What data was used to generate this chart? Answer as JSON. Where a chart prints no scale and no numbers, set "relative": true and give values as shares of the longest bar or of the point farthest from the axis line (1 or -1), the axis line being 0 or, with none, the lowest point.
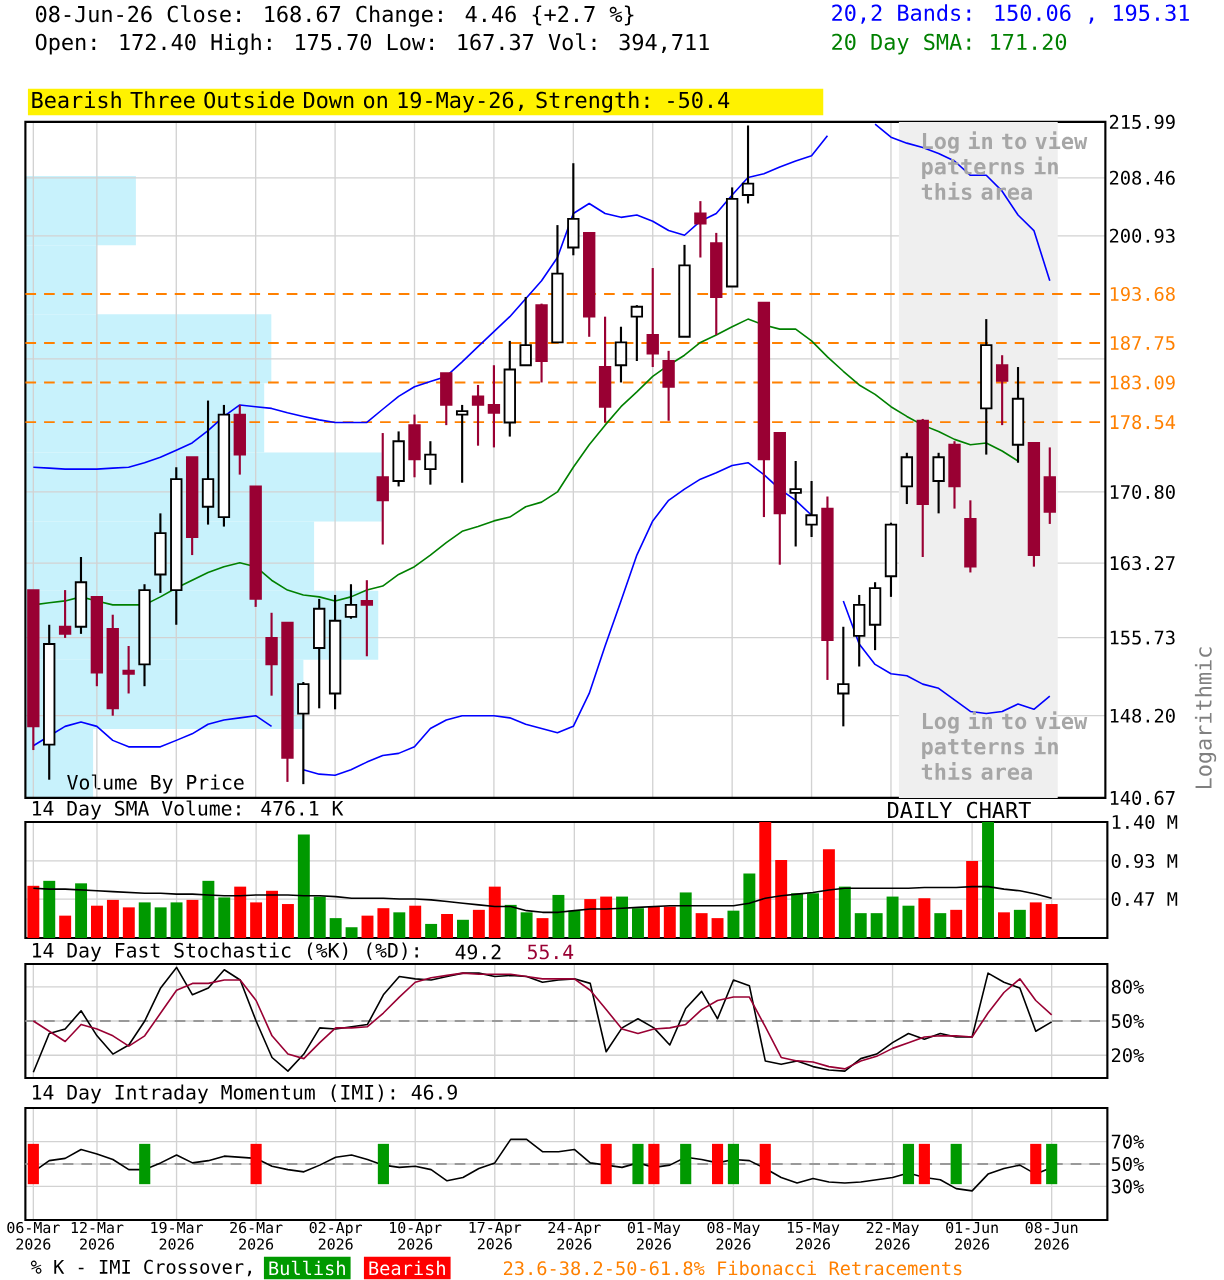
{
  "chart_data": [
    {
      "type": "candlestick",
      "title": "08-Jun-26 Close: 168.67 Change: 4.46 {+2.7 %}",
      "subtitle": "Open: 172.40 High: 175.70 Low: 167.37 Vol: 394,711",
      "ylabel": "Logarithmic",
      "annotations": [
        "Bearish Three Outside Down on 19-May-26, Strength: -50.4",
        "Log in to view patterns in this area",
        "Log in to view patterns in this area",
        "23.6-38.2-50-61.8% Fibonacci Retracements"
      ],
      "categories": [
        "06-Mar 2026",
        null,
        null,
        null,
        "12-Mar 2026",
        null,
        null,
        null,
        null,
        "19-Mar 2026",
        null,
        null,
        null,
        null,
        "26-Mar 2026",
        null,
        null,
        null,
        null,
        "02-Apr 2026",
        null,
        null,
        null,
        null,
        "10-Apr 2026",
        null,
        null,
        null,
        null,
        "17-Apr 2026",
        null,
        null,
        null,
        null,
        "24-Apr 2026",
        null,
        null,
        null,
        null,
        "01-May 2026",
        null,
        null,
        null,
        null,
        "08-May 2026",
        null,
        null,
        null,
        null,
        "15-May 2026",
        null,
        null,
        null,
        null,
        "22-May 2026",
        null,
        null,
        null,
        null,
        "01-Jun 2026",
        null,
        null,
        null,
        null,
        "08-Jun 2026",
        null,
        null,
        null
      ],
      "ohlc": [
        [
          160.5,
          160.5,
          145.0,
          147.2
        ],
        [
          145.5,
          157.0,
          142.3,
          155.1
        ],
        [
          156.8,
          160.5,
          155.7,
          156.1
        ],
        [
          156.8,
          163.9,
          156.1,
          161.3
        ],
        [
          159.8,
          159.8,
          151.0,
          152.3
        ],
        [
          156.6,
          158.0,
          148.2,
          148.9
        ],
        [
          152.5,
          154.9,
          150.3,
          152.2
        ],
        [
          153.1,
          161.1,
          151.0,
          160.5
        ],
        [
          162.1,
          168.5,
          160.2,
          166.4
        ],
        [
          160.5,
          173.5,
          157.0,
          172.2
        ],
        [
          174.6,
          174.6,
          164.1,
          166.0
        ],
        [
          169.2,
          181.0,
          167.3,
          172.2
        ],
        [
          168.1,
          180.5,
          167.1,
          179.4
        ],
        [
          179.4,
          180.5,
          172.7,
          174.9
        ],
        [
          171.4,
          171.4,
          158.8,
          159.6
        ],
        [
          155.7,
          158.2,
          150.1,
          153.1
        ],
        [
          157.2,
          157.2,
          142.1,
          144.3
        ],
        [
          148.4,
          151.4,
          141.9,
          151.2
        ],
        [
          154.7,
          159.6,
          148.9,
          158.6
        ],
        [
          150.3,
          160.0,
          148.8,
          157.4
        ],
        [
          157.8,
          161.1,
          157.6,
          159.0
        ],
        [
          159.4,
          161.5,
          153.9,
          159.0
        ],
        [
          172.4,
          177.3,
          165.2,
          169.9
        ],
        [
          172.0,
          177.5,
          171.4,
          176.4
        ],
        [
          178.2,
          179.4,
          172.4,
          174.4
        ],
        [
          173.3,
          176.4,
          171.6,
          174.9
        ],
        [
          184.2,
          184.2,
          178.2,
          180.5
        ],
        [
          179.4,
          180.5,
          171.8,
          179.8
        ],
        [
          181.5,
          182.8,
          175.9,
          180.5
        ],
        [
          180.5,
          185.1,
          175.7,
          179.6
        ],
        [
          178.5,
          188.0,
          176.9,
          184.6
        ],
        [
          185.1,
          193.3,
          185.1,
          187.5
        ],
        [
          192.3,
          192.5,
          183.1,
          185.6
        ],
        [
          187.8,
          202.3,
          187.8,
          196.2
        ],
        [
          199.5,
          210.4,
          198.5,
          203.1
        ],
        [
          201.3,
          201.3,
          188.5,
          190.9
        ],
        [
          184.9,
          190.9,
          178.5,
          180.3
        ],
        [
          185.1,
          189.7,
          183.1,
          187.8
        ],
        [
          190.9,
          192.3,
          185.6,
          192.1
        ],
        [
          188.7,
          196.9,
          184.9,
          186.5
        ],
        [
          185.6,
          186.8,
          178.7,
          182.6
        ],
        [
          188.5,
          199.8,
          188.5,
          197.2
        ],
        [
          203.8,
          205.4,
          198.2,
          202.5
        ],
        [
          200.0,
          201.3,
          188.7,
          193.3
        ],
        [
          194.6,
          207.2,
          194.6,
          205.7
        ],
        [
          206.2,
          215.5,
          205.1,
          207.7
        ],
        [
          192.6,
          192.6,
          168.1,
          174.4
        ],
        [
          177.3,
          177.3,
          163.1,
          168.5
        ],
        [
          170.7,
          174.2,
          165.0,
          171.1
        ],
        [
          167.3,
          172.0,
          166.0,
          168.3
        ],
        [
          169.0,
          170.3,
          151.6,
          155.5
        ],
        [
          150.3,
          156.8,
          147.2,
          151.2
        ],
        [
          155.9,
          160.0,
          152.9,
          159.0
        ],
        [
          157.0,
          161.3,
          154.5,
          160.7
        ],
        [
          161.9,
          167.5,
          159.8,
          167.3
        ],
        [
          171.4,
          175.1,
          169.5,
          174.6
        ],
        [
          178.7,
          178.9,
          163.9,
          169.5
        ],
        [
          172.0,
          175.1,
          168.5,
          174.6
        ],
        [
          176.0,
          176.4,
          169.0,
          171.4
        ],
        [
          167.9,
          169.9,
          162.3,
          162.9
        ],
        [
          180.1,
          190.6,
          174.9,
          187.5
        ],
        [
          185.1,
          186.3,
          178.2,
          183.3
        ],
        [
          176.0,
          184.9,
          174.0,
          181.2
        ],
        [
          176.2,
          176.2,
          162.9,
          164.1
        ],
        [
          172.4,
          175.7,
          167.37,
          168.67
        ],
        null,
        null,
        null
      ],
      "colors": [
        "#990033",
        "#ffffff",
        "#990033",
        "#ffffff",
        "#990033",
        "#990033",
        "#990033",
        "#ffffff",
        "#ffffff",
        "#ffffff",
        "#990033",
        "#ffffff",
        "#ffffff",
        "#990033",
        "#990033",
        "#990033",
        "#990033",
        "#ffffff",
        "#ffffff",
        "#ffffff",
        "#ffffff",
        "#990033",
        "#990033",
        "#ffffff",
        "#990033",
        "#ffffff",
        "#990033",
        "#ffffff",
        "#990033",
        "#990033",
        "#ffffff",
        "#ffffff",
        "#990033",
        "#ffffff",
        "#ffffff",
        "#990033",
        "#990033",
        "#ffffff",
        "#ffffff",
        "#990033",
        "#990033",
        "#ffffff",
        "#990033",
        "#990033",
        "#ffffff",
        "#ffffff",
        "#990033",
        "#990033",
        "#ffffff",
        "#ffffff",
        "#990033",
        "#ffffff",
        "#ffffff",
        "#ffffff",
        "#ffffff",
        "#ffffff",
        "#990033",
        "#ffffff",
        "#990033",
        "#990033",
        "#ffffff",
        "#990033",
        "#ffffff",
        "#990033",
        "#990033",
        null,
        null,
        null
      ],
      "series": [
        {
          "type": "line",
          "name": "20,2 Bands: 150.06 , 195.31",
          "color": "#0000ff",
          "values": [
            173.5,
            173.4,
            173.3,
            173.3,
            173.3,
            173.4,
            173.5,
            174.0,
            174.6,
            175.4,
            176.2,
            177.6,
            179.2,
            180.5,
            180.3,
            180.1,
            179.6,
            179.2,
            178.8,
            178.5,
            178.5,
            178.5,
            180.0,
            181.5,
            182.6,
            183.2,
            183.8,
            185.5,
            187.3,
            189.1,
            190.9,
            193.1,
            195.3,
            198.2,
            203.8,
            205.1,
            203.8,
            203.3,
            203.6,
            202.8,
            201.6,
            201.0,
            202.8,
            203.8,
            206.2,
            208.5,
            209.0,
            209.9,
            210.7,
            211.4,
            214.1,
            null,
            null,
            215.7,
            213.9,
            213.1,
            212.5,
            211.7,
            210.7,
            208.8,
            208.8,
            206.7,
            203.6,
            201.6,
            195.31,
            null,
            null,
            null
          ]
        },
        {
          "type": "line",
          "color": "#0000ff",
          "values": [
            145.4,
            146.3,
            147.2,
            147.6,
            147.2,
            145.9,
            145.3,
            145.3,
            145.3,
            145.9,
            146.5,
            147.4,
            147.8,
            148.0,
            148.2,
            147.2,
            null,
            143.2,
            142.8,
            142.7,
            143.2,
            143.9,
            144.5,
            144.7,
            145.3,
            147.0,
            147.8,
            148.2,
            148.2,
            148.2,
            148.0,
            147.4,
            147.0,
            146.6,
            147.2,
            150.3,
            154.9,
            159.4,
            164.1,
            167.7,
            169.9,
            171.1,
            172.2,
            172.9,
            173.7,
            174.0,
            172.7,
            171.1,
            169.9,
            168.3,
            null,
            159.4,
            155.1,
            153.1,
            152.2,
            152.0,
            151.2,
            150.8,
            149.7,
            148.6,
            148.4,
            148.6,
            149.3,
            148.8,
            150.06,
            null,
            null,
            null
          ]
        },
        {
          "type": "line",
          "name": "20 Day SMA: 171.20",
          "color": "#008000",
          "values": [
            159.0,
            159.2,
            159.4,
            159.8,
            159.4,
            159.0,
            159.0,
            159.0,
            159.8,
            160.7,
            161.5,
            162.3,
            162.9,
            163.3,
            162.9,
            161.5,
            160.5,
            160.0,
            159.8,
            159.4,
            159.8,
            160.5,
            160.9,
            162.1,
            162.9,
            164.1,
            165.4,
            166.6,
            167.1,
            167.7,
            168.1,
            169.2,
            169.7,
            170.8,
            173.5,
            176.0,
            178.2,
            180.3,
            182.0,
            183.8,
            185.1,
            186.3,
            187.8,
            188.7,
            189.7,
            190.6,
            189.9,
            189.4,
            189.4,
            188.0,
            186.1,
            184.4,
            182.8,
            181.7,
            180.3,
            179.2,
            178.2,
            177.5,
            176.6,
            176.0,
            176.2,
            175.3,
            174.2,
            null,
            null,
            null,
            null,
            null
          ]
        }
      ],
      "ylim": [
        140.67,
        215.99
      ],
      "log": true,
      "yticks": [
        215.99,
        208.46,
        200.93,
        {
          "value": 185.87,
          "label": null
        },
        {
          "value": 170.8,
          "label": "170.80"
        },
        163.27,
        155.73,
        {
          "value": 148.2,
          "label": "148.20"
        },
        140.67
      ],
      "grid": true,
      "tick_labels": "y",
      "ref_lines": [
        {
          "axis": "y",
          "value": 193.68,
          "label": "193.68",
          "color": "#ff8000",
          "line_style": "dashed"
        },
        {
          "axis": "y",
          "value": 187.75,
          "label": "187.75",
          "color": "#ff8000",
          "line_style": "dashed"
        },
        {
          "axis": "y",
          "value": 183.09,
          "label": "183.09",
          "color": "#ff8000",
          "line_style": "dashed"
        },
        {
          "axis": "y",
          "value": 178.54,
          "label": "178.54",
          "color": "#ff8000",
          "line_style": "dashed"
        }
      ],
      "bands": [
        {
          "axis": "x",
          "from": "22-May 2026",
          "to": "08-Jun 2026",
          "color": "#efefef"
        }
      ]
    },
    {
      "type": "bar",
      "orientation": "horizontal",
      "relative": true,
      "title": "Volume By Price",
      "categories": [
        null,
        null,
        null,
        null,
        null,
        null,
        null,
        null,
        null
      ],
      "values": [
        0.31,
        0.2,
        0.69,
        0.67,
        1,
        0.81,
        0.99,
        0.78,
        0.19
      ],
      "color": "#c8f2fc"
    },
    {
      "type": "bar",
      "annotations": [
        "DAILY CHART"
      ],
      "categories": [
        "06-Mar 2026",
        null,
        null,
        null,
        "12-Mar 2026",
        null,
        null,
        null,
        null,
        "19-Mar 2026",
        null,
        null,
        null,
        null,
        "26-Mar 2026",
        null,
        null,
        null,
        null,
        "02-Apr 2026",
        null,
        null,
        null,
        null,
        "10-Apr 2026",
        null,
        null,
        null,
        null,
        "17-Apr 2026",
        null,
        null,
        null,
        null,
        "24-Apr 2026",
        null,
        null,
        null,
        null,
        "01-May 2026",
        null,
        null,
        null,
        null,
        "08-May 2026",
        null,
        null,
        null,
        null,
        "15-May 2026",
        null,
        null,
        null,
        null,
        "22-May 2026",
        null,
        null,
        null,
        null,
        "01-Jun 2026",
        null,
        null,
        null,
        null,
        "08-Jun 2026",
        null,
        null,
        null
      ],
      "series": [
        {
          "type": "bar",
          "values": [
            0.63,
            0.69,
            0.27,
            0.66,
            0.39,
            0.46,
            0.37,
            0.43,
            0.37,
            0.43,
            0.46,
            0.69,
            0.49,
            0.62,
            0.43,
            0.57,
            0.41,
            1.25,
            0.5,
            0.24,
            0.13,
            0.27,
            0.36,
            0.31,
            0.39,
            0.17,
            0.29,
            0.22,
            0.34,
            0.62,
            0.4,
            0.31,
            0.24,
            0.52,
            0.33,
            0.47,
            0.5,
            0.5,
            0.36,
            0.38,
            0.38,
            0.55,
            0.3,
            0.24,
            0.33,
            0.78,
            1.4,
            0.94,
            0.54,
            0.54,
            1.07,
            0.62,
            0.3,
            0.3,
            0.5,
            0.39,
            0.48,
            0.3,
            0.34,
            0.93,
            1.4,
            0.31,
            0.34,
            0.43,
            0.41,
            null,
            null,
            null
          ],
          "colors": [
            "#ff0000",
            "#009900",
            "#ff0000",
            "#009900",
            "#ff0000",
            "#ff0000",
            "#ff0000",
            "#009900",
            "#009900",
            "#009900",
            "#ff0000",
            "#009900",
            "#009900",
            "#ff0000",
            "#ff0000",
            "#ff0000",
            "#ff0000",
            "#009900",
            "#009900",
            "#009900",
            "#009900",
            "#ff0000",
            "#ff0000",
            "#009900",
            "#ff0000",
            "#009900",
            "#ff0000",
            "#009900",
            "#ff0000",
            "#ff0000",
            "#009900",
            "#009900",
            "#ff0000",
            "#009900",
            "#009900",
            "#ff0000",
            "#ff0000",
            "#009900",
            "#009900",
            "#ff0000",
            "#ff0000",
            "#009900",
            "#ff0000",
            "#ff0000",
            "#009900",
            "#009900",
            "#ff0000",
            "#ff0000",
            "#009900",
            "#009900",
            "#ff0000",
            "#009900",
            "#009900",
            "#009900",
            "#009900",
            "#009900",
            "#ff0000",
            "#009900",
            "#ff0000",
            "#ff0000",
            "#009900",
            "#ff0000",
            "#009900",
            "#ff0000",
            "#ff0000",
            null,
            null,
            null
          ]
        },
        {
          "type": "line",
          "name": "14 Day SMA Volume: 476.1 K",
          "color": "#000000",
          "values": [
            0.6,
            0.59,
            0.59,
            0.58,
            0.57,
            0.56,
            0.55,
            0.54,
            0.54,
            0.53,
            0.53,
            0.52,
            0.51,
            0.51,
            0.52,
            0.52,
            0.52,
            0.51,
            0.51,
            0.5,
            0.48,
            0.48,
            0.48,
            0.47,
            0.47,
            0.46,
            0.44,
            0.42,
            0.4,
            0.38,
            0.38,
            0.33,
            0.31,
            0.31,
            0.33,
            0.35,
            0.35,
            0.36,
            0.37,
            0.38,
            0.39,
            0.39,
            0.39,
            0.39,
            0.39,
            0.42,
            0.48,
            0.51,
            0.53,
            0.55,
            0.58,
            0.6,
            0.6,
            0.6,
            0.6,
            0.6,
            0.61,
            0.61,
            0.61,
            0.62,
            0.62,
            0.59,
            0.57,
            0.53,
            0.48,
            null,
            null,
            null
          ]
        }
      ],
      "ylim": [
        0,
        1.4
      ],
      "yticks": [
        {
          "value": 0.47,
          "label": "0.47 M"
        },
        {
          "value": 0.93,
          "label": "0.93 M"
        },
        {
          "value": 1.4,
          "label": "1.40 M"
        }
      ],
      "grid": true,
      "tick_labels": "y"
    },
    {
      "type": "line",
      "title": "14 Day Fast Stochastic (%K) (%D):",
      "categories": [
        "06-Mar 2026",
        null,
        null,
        null,
        "12-Mar 2026",
        null,
        null,
        null,
        null,
        "19-Mar 2026",
        null,
        null,
        null,
        null,
        "26-Mar 2026",
        null,
        null,
        null,
        null,
        "02-Apr 2026",
        null,
        null,
        null,
        null,
        "10-Apr 2026",
        null,
        null,
        null,
        null,
        "17-Apr 2026",
        null,
        null,
        null,
        null,
        "24-Apr 2026",
        null,
        null,
        null,
        null,
        "01-May 2026",
        null,
        null,
        null,
        null,
        "08-May 2026",
        null,
        null,
        null,
        null,
        "15-May 2026",
        null,
        null,
        null,
        null,
        "22-May 2026",
        null,
        null,
        null,
        null,
        "01-Jun 2026",
        null,
        null,
        null,
        null,
        "08-Jun 2026",
        null,
        null,
        null
      ],
      "series": [
        {
          "name": "49.2",
          "color": "#000000",
          "values": [
            5,
            39,
            43,
            59,
            37,
            21,
            29,
            50,
            79,
            97,
            73,
            79,
            95,
            86,
            50,
            18,
            6,
            21,
            44,
            43,
            45,
            47,
            73,
            89,
            87,
            86,
            89,
            92,
            92,
            89,
            90,
            89,
            84,
            86,
            87,
            83,
            23,
            44,
            52,
            44,
            29,
            61,
            76,
            52,
            86,
            81,
            15,
            12,
            15,
            10,
            7,
            6,
            17,
            21,
            31,
            39,
            34,
            39,
            36,
            36,
            92,
            84,
            79,
            41,
            49.2,
            null,
            null,
            null
          ]
        },
        {
          "name": "55.4",
          "color": "#990033",
          "values": [
            50,
            41,
            32,
            47,
            43,
            37,
            28,
            37,
            57,
            77,
            83,
            83,
            86,
            86,
            68,
            37,
            21,
            17,
            31,
            44,
            44,
            45,
            57,
            71,
            84,
            88,
            90,
            92,
            91,
            91,
            91,
            89,
            87,
            87,
            87,
            77,
            60,
            43,
            39,
            43,
            44,
            47,
            60,
            68,
            71,
            71,
            45,
            18,
            15,
            14,
            10,
            8,
            15,
            19,
            26,
            31,
            36,
            37,
            37,
            36,
            57,
            75,
            87,
            68,
            55.4,
            null,
            null,
            null
          ]
        }
      ],
      "ylim": [
        0,
        100
      ],
      "yticks": [
        {
          "value": 20,
          "label": "20%"
        },
        {
          "value": 50,
          "label": "50%"
        },
        {
          "value": 80,
          "label": "80%"
        }
      ],
      "grid": true,
      "tick_labels": "y",
      "ref_lines": [
        {
          "axis": "y",
          "value": 50,
          "color": "#999999",
          "line_style": "dashed"
        }
      ]
    },
    {
      "type": "line",
      "title": "14 Day Intraday Momentum (IMI): 46.9",
      "categories": [
        "06-Mar 2026",
        null,
        null,
        null,
        "12-Mar 2026",
        null,
        null,
        null,
        null,
        "19-Mar 2026",
        null,
        null,
        null,
        null,
        "26-Mar 2026",
        null,
        null,
        null,
        null,
        "02-Apr 2026",
        null,
        null,
        null,
        null,
        "10-Apr 2026",
        null,
        null,
        null,
        null,
        "17-Apr 2026",
        null,
        null,
        null,
        null,
        "24-Apr 2026",
        null,
        null,
        null,
        null,
        "01-May 2026",
        null,
        null,
        null,
        null,
        "08-May 2026",
        null,
        null,
        null,
        null,
        "15-May 2026",
        null,
        null,
        null,
        null,
        "22-May 2026",
        null,
        null,
        null,
        null,
        "01-Jun 2026",
        null,
        null,
        null,
        null,
        "08-Jun 2026",
        null,
        null,
        null
      ],
      "series": [
        {
          "color": "#000000",
          "values": [
            43,
            53,
            55,
            63,
            59,
            54,
            45,
            45,
            51,
            58,
            51,
            53,
            57,
            56,
            55,
            48,
            45,
            43,
            49,
            56,
            58,
            54,
            49,
            47,
            48,
            45,
            35,
            38,
            46,
            51,
            72,
            72,
            61,
            61,
            63,
            51,
            49,
            47,
            51,
            47,
            49,
            56,
            54,
            51,
            54,
            53,
            46,
            38,
            33,
            37,
            34,
            33,
            34,
            36,
            38,
            42,
            38,
            36,
            28,
            26,
            41,
            46,
            49,
            41,
            46.9,
            null,
            null,
            null
          ]
        },
        {
          "type": "bar",
          "name": "Bullish",
          "color": "#009900",
          "values": [
            null,
            null,
            null,
            null,
            null,
            null,
            null,
            36,
            null,
            null,
            null,
            null,
            null,
            null,
            null,
            null,
            null,
            null,
            null,
            null,
            null,
            null,
            36,
            null,
            null,
            null,
            null,
            null,
            null,
            null,
            null,
            null,
            null,
            null,
            null,
            null,
            null,
            null,
            36,
            null,
            null,
            36,
            null,
            null,
            36,
            null,
            null,
            null,
            null,
            null,
            null,
            null,
            null,
            null,
            null,
            36,
            null,
            null,
            36,
            null,
            null,
            null,
            null,
            null,
            36,
            null,
            null,
            null
          ],
          "base": [
            null,
            null,
            null,
            null,
            null,
            null,
            null,
            32,
            null,
            null,
            null,
            null,
            null,
            null,
            null,
            null,
            null,
            null,
            null,
            null,
            null,
            null,
            32,
            null,
            null,
            null,
            null,
            null,
            null,
            null,
            null,
            null,
            null,
            null,
            null,
            null,
            null,
            null,
            32,
            null,
            null,
            32,
            null,
            null,
            32,
            null,
            null,
            null,
            null,
            null,
            null,
            null,
            null,
            null,
            null,
            32,
            null,
            null,
            32,
            null,
            null,
            null,
            null,
            null,
            32,
            null,
            null,
            null
          ]
        },
        {
          "type": "bar",
          "name": "Bearish",
          "color": "#ff0000",
          "values": [
            36,
            null,
            null,
            null,
            null,
            null,
            null,
            null,
            null,
            null,
            null,
            null,
            null,
            null,
            36,
            null,
            null,
            null,
            null,
            null,
            null,
            null,
            null,
            null,
            null,
            null,
            null,
            null,
            null,
            null,
            null,
            null,
            null,
            null,
            null,
            null,
            36,
            null,
            null,
            36,
            null,
            null,
            null,
            36,
            null,
            null,
            36,
            null,
            null,
            null,
            null,
            null,
            null,
            null,
            null,
            null,
            36,
            null,
            null,
            null,
            null,
            null,
            null,
            36,
            null,
            null,
            null,
            null
          ],
          "base": [
            32,
            null,
            null,
            null,
            null,
            null,
            null,
            null,
            null,
            null,
            null,
            null,
            null,
            null,
            32,
            null,
            null,
            null,
            null,
            null,
            null,
            null,
            null,
            null,
            null,
            null,
            null,
            null,
            null,
            null,
            null,
            null,
            null,
            null,
            null,
            null,
            32,
            null,
            null,
            32,
            null,
            null,
            null,
            32,
            null,
            null,
            32,
            null,
            null,
            null,
            null,
            null,
            null,
            null,
            null,
            null,
            32,
            null,
            null,
            null,
            null,
            null,
            null,
            32,
            null,
            null,
            null,
            null
          ]
        }
      ],
      "ylim": [
        0,
        100
      ],
      "yticks": [
        {
          "value": 30,
          "label": "30%"
        },
        {
          "value": 50,
          "label": "50%"
        },
        {
          "value": 70,
          "label": "70%"
        }
      ],
      "grid": true,
      "legend": "bottom",
      "legend_title": "% K - IMI Crossover,",
      "ref_lines": [
        {
          "axis": "y",
          "value": 50,
          "color": "#999999",
          "line_style": "dashed"
        }
      ]
    }
  ]
}
